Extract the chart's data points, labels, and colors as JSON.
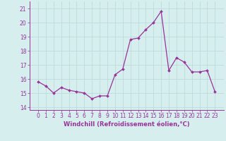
{
  "x": [
    0,
    1,
    2,
    3,
    4,
    5,
    6,
    7,
    8,
    9,
    10,
    11,
    12,
    13,
    14,
    15,
    16,
    17,
    18,
    19,
    20,
    21,
    22,
    23
  ],
  "y": [
    15.8,
    15.5,
    15.0,
    15.4,
    15.2,
    15.1,
    15.0,
    14.6,
    14.8,
    14.8,
    16.3,
    16.7,
    18.8,
    18.9,
    19.5,
    20.0,
    20.8,
    16.6,
    17.5,
    17.2,
    16.5,
    16.5,
    16.6,
    15.1
  ],
  "line_color": "#993399",
  "marker": "D",
  "marker_size": 2.0,
  "linewidth": 0.9,
  "xlabel": "Windchill (Refroidissement éolien,°C)",
  "xlabel_fontsize": 6.0,
  "ylim": [
    13.8,
    21.5
  ],
  "yticks": [
    14,
    15,
    16,
    17,
    18,
    19,
    20,
    21
  ],
  "xticks": [
    0,
    1,
    2,
    3,
    4,
    5,
    6,
    7,
    8,
    9,
    10,
    11,
    12,
    13,
    14,
    15,
    16,
    17,
    18,
    19,
    20,
    21,
    22,
    23
  ],
  "background_color": "#d6eeee",
  "grid_color": "#b8d8d8",
  "tick_fontsize": 5.5,
  "title": ""
}
